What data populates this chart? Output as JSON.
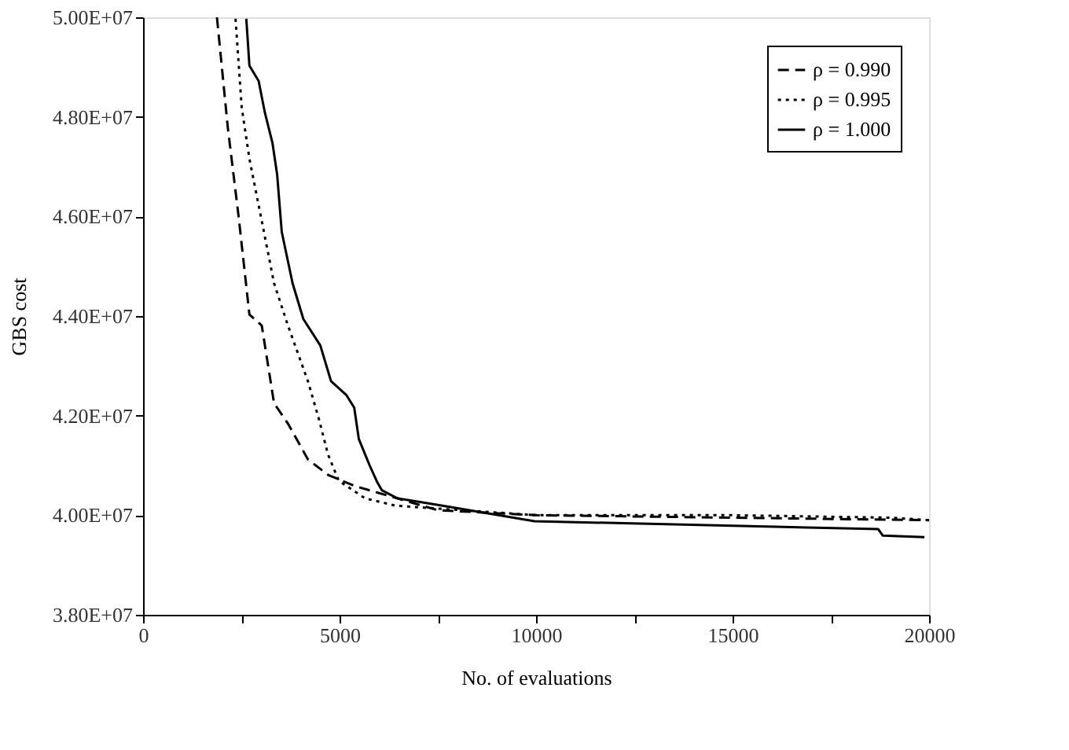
{
  "chart_data": {
    "type": "line",
    "xlabel": "No. of evaluations",
    "ylabel": "GBS cost",
    "xlim": [
      0,
      20000
    ],
    "xticks": [
      0,
      {
        "value": 2500,
        "label": null
      },
      5000,
      {
        "value": 7500,
        "label": null
      },
      10000,
      {
        "value": 12500,
        "label": null
      },
      15000,
      {
        "value": 17500,
        "label": null
      },
      20000
    ],
    "ylim": [
      38000000,
      50000000
    ],
    "yticks": [
      {
        "value": 38000000,
        "label": "3.80E+07"
      },
      {
        "value": 40000000,
        "label": "4.00E+07"
      },
      {
        "value": 42000000,
        "label": "4.20E+07"
      },
      {
        "value": 44000000,
        "label": "4.40E+07"
      },
      {
        "value": 46000000,
        "label": "4.60E+07"
      },
      {
        "value": 48000000,
        "label": "4.80E+07"
      },
      {
        "value": 50000000,
        "label": "5.00E+07"
      }
    ],
    "grid": false,
    "legend": "top right",
    "series": [
      {
        "name": "ρ = 0.990",
        "color": "#000000",
        "line_style": "dashed",
        "x": [
          1880,
          2157,
          2431,
          2706,
          3020,
          3333,
          3686,
          4196,
          4706,
          5373,
          7500,
          10000,
          15000,
          20000
        ],
        "values": [
          50000000,
          47780000,
          46000000,
          44030000,
          43810000,
          42250000,
          41840000,
          41120000,
          40810000,
          40590000,
          40100000,
          40000000,
          39950000,
          39900000
        ]
      },
      {
        "name": "ρ = 0.995",
        "color": "#000000",
        "line_style": "dotted",
        "x": [
          2353,
          2510,
          2706,
          3020,
          3333,
          3686,
          4196,
          4471,
          4706,
          4980,
          5647,
          6431,
          10000,
          15000,
          19000,
          20000
        ],
        "values": [
          49970000,
          48190000,
          47160000,
          45910000,
          44660000,
          43810000,
          42690000,
          41940000,
          41220000,
          40690000,
          40340000,
          40190000,
          40000000,
          40000000,
          39950000,
          39900000
        ]
      },
      {
        "name": "ρ = 1.000",
        "color": "#000000",
        "line_style": "solid",
        "x": [
          2627,
          2706,
          2941,
          3098,
          3294,
          3412,
          3529,
          3804,
          4078,
          4510,
          4784,
          5176,
          5373,
          5490,
          5765,
          5961,
          6078,
          6471,
          7412,
          9961,
          18706,
          18824,
          19882
        ],
        "values": [
          49970000,
          49030000,
          48720000,
          48090000,
          47470000,
          46840000,
          45690000,
          44660000,
          43940000,
          43410000,
          42690000,
          42410000,
          42160000,
          41530000,
          41000000,
          40660000,
          40500000,
          40340000,
          40220000,
          39880000,
          39720000,
          39590000,
          39560000
        ]
      }
    ]
  }
}
